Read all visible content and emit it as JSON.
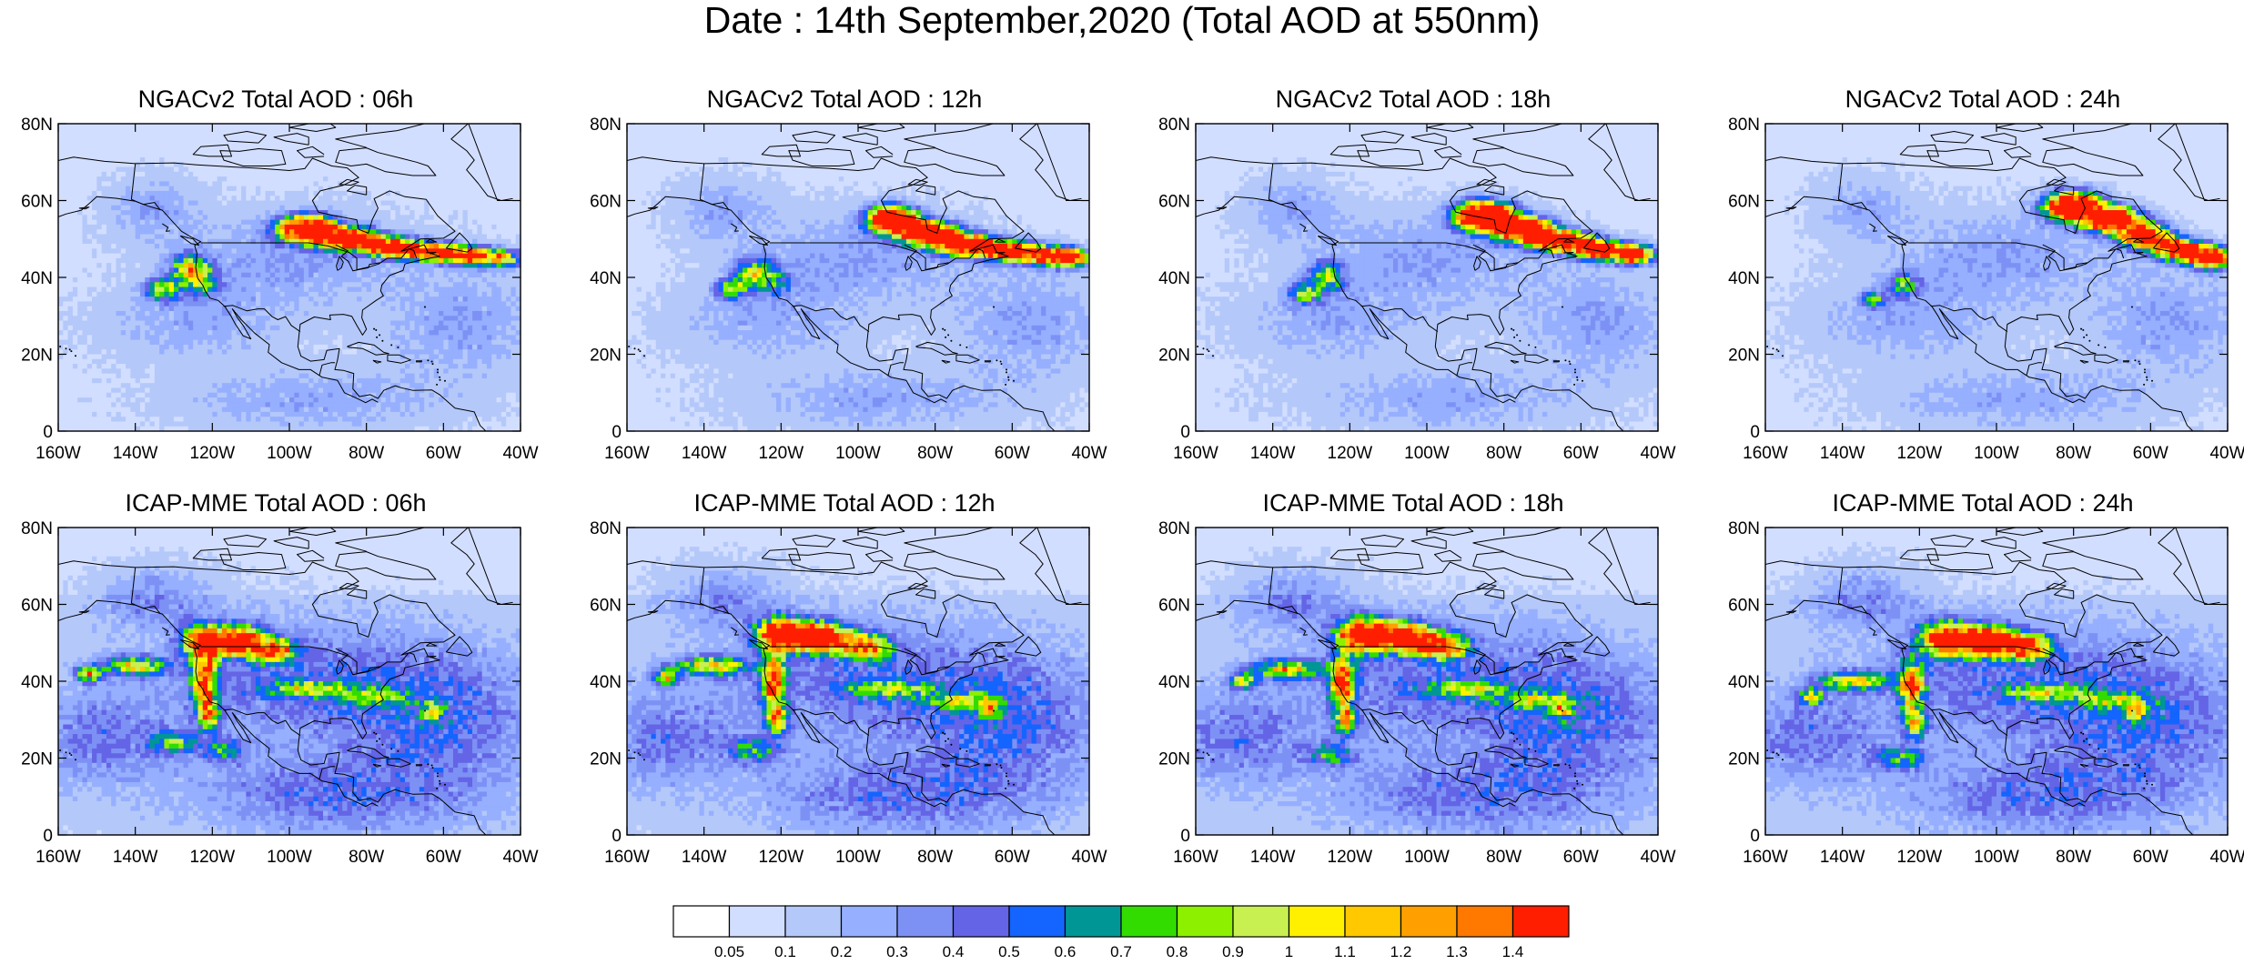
{
  "title": "Date : 14th September,2020 (Total AOD at 550nm)",
  "panels": [
    {
      "title": "NGACv2 Total AOD : 06h",
      "model": "ngac",
      "hour": 6
    },
    {
      "title": "NGACv2 Total AOD : 12h",
      "model": "ngac",
      "hour": 12
    },
    {
      "title": "NGACv2 Total AOD : 18h",
      "model": "ngac",
      "hour": 18
    },
    {
      "title": "NGACv2 Total AOD : 24h",
      "model": "ngac",
      "hour": 24
    },
    {
      "title": "ICAP-MME Total AOD : 06h",
      "model": "icap",
      "hour": 6
    },
    {
      "title": "ICAP-MME Total AOD : 12h",
      "model": "icap",
      "hour": 12
    },
    {
      "title": "ICAP-MME Total AOD : 18h",
      "model": "icap",
      "hour": 18
    },
    {
      "title": "ICAP-MME Total AOD : 24h",
      "model": "icap",
      "hour": 24
    }
  ],
  "map": {
    "lon_range": [
      -160,
      -40
    ],
    "lat_range": [
      0,
      80
    ],
    "y_ticks": [
      "0",
      "20N",
      "40N",
      "60N",
      "80N"
    ],
    "x_ticks": [
      "160W",
      "140W",
      "120W",
      "100W",
      "80W",
      "60W",
      "40W"
    ]
  },
  "colorbar": {
    "labels": [
      "0.05",
      "0.1",
      "0.2",
      "0.3",
      "0.4",
      "0.5",
      "0.6",
      "0.7",
      "0.8",
      "0.9",
      "1",
      "1.1",
      "1.2",
      "1.3",
      "1.4"
    ],
    "colors": [
      "#ffffff",
      "#d2deff",
      "#b4c8fa",
      "#96afff",
      "#7d91f5",
      "#6464e6",
      "#1464ff",
      "#009696",
      "#32dc00",
      "#8cf000",
      "#c8f050",
      "#fff000",
      "#ffc800",
      "#ffa000",
      "#ff7800",
      "#ff1e00"
    ]
  }
}
